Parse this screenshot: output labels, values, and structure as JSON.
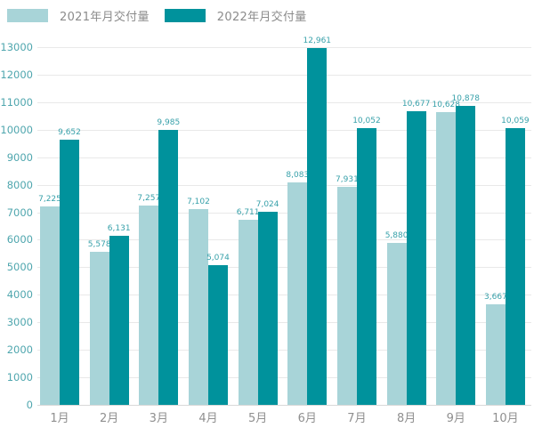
{
  "chart_data": {
    "type": "bar",
    "title": "",
    "xlabel": "",
    "ylabel": "",
    "categories": [
      "1月",
      "2月",
      "3月",
      "4月",
      "5月",
      "6月",
      "7月",
      "8月",
      "9月",
      "10月"
    ],
    "series": [
      {
        "name": "2021年月交付量",
        "color": "#a8d4d8",
        "values": [
          7225,
          5578,
          7257,
          7102,
          6711,
          8083,
          7931,
          5880,
          10628,
          3667
        ]
      },
      {
        "name": "2022年月交付量",
        "color": "#00929c",
        "values": [
          9652,
          6131,
          9985,
          5074,
          7024,
          12961,
          10052,
          10677,
          10878,
          10059
        ]
      }
    ],
    "ylim": [
      0,
      13000
    ],
    "ytick_step": 1000,
    "ytick_labels": [
      "0",
      "1000",
      "2000",
      "3000",
      "4000",
      "5000",
      "6000",
      "7000",
      "8000",
      "9000",
      "10000",
      "11000",
      "12000",
      "13000"
    ],
    "grid": true,
    "legend_position": "top-left",
    "value_labels": true,
    "value_label_format": "thousands-comma"
  },
  "colors": {
    "background": "#ffffff",
    "series_2021": "#a8d4d8",
    "series_2022": "#00929c",
    "grid": "#e9e9e9",
    "zero_line": "#d9d9d9",
    "y_tick_text": "#4fa6ae",
    "x_tick_text": "#8f8f8f",
    "value_label_text": "#38a1aa",
    "legend_text": "#8b8b8b"
  }
}
